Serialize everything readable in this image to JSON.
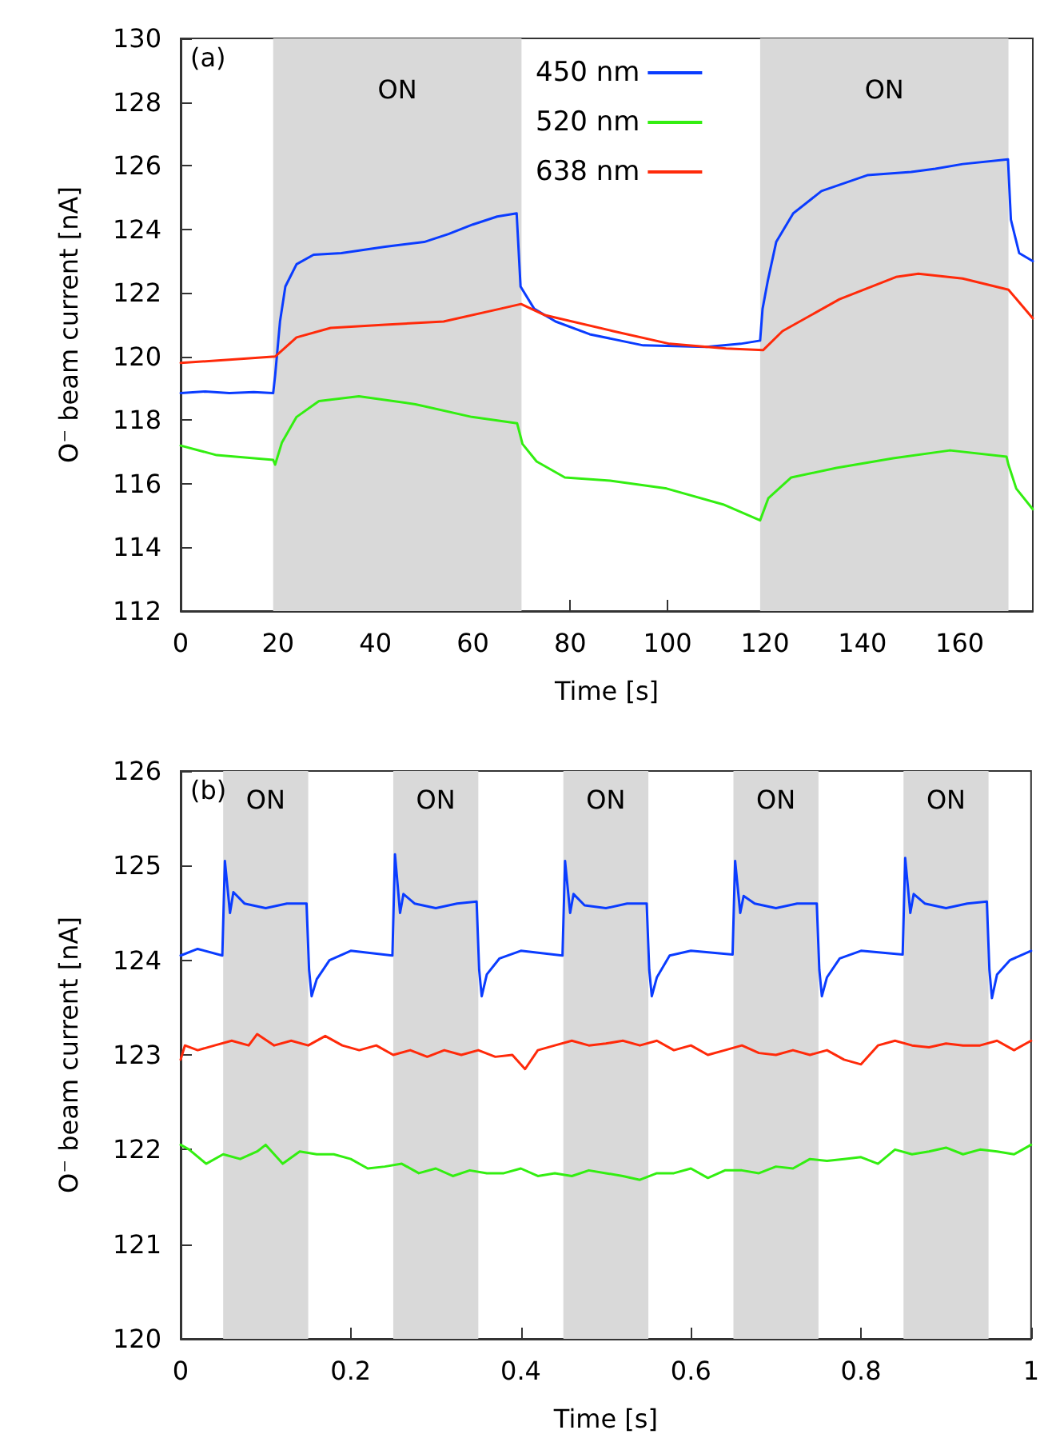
{
  "chart_data": [
    {
      "type": "line",
      "xlabel": "Time [s]",
      "ylabel": "O⁻ beam current [nA]",
      "xlim": [
        0,
        175
      ],
      "xticks": [
        0,
        20,
        40,
        60,
        80,
        100,
        120,
        140,
        160
      ],
      "ylim": [
        112,
        130
      ],
      "yticks": [
        112,
        114,
        116,
        118,
        120,
        122,
        124,
        126,
        128,
        130
      ],
      "grid": false,
      "legend": "top",
      "marker": "none",
      "line_style": "solid",
      "annotations": [
        "(a)"
      ],
      "bands": [
        {
          "axis": "x",
          "from": 19,
          "to": 70,
          "label": "ON",
          "color": "#d9d9d9"
        },
        {
          "axis": "x",
          "from": 119,
          "to": 170,
          "label": "ON",
          "color": "#d9d9d9"
        }
      ],
      "series": [
        {
          "name": "450 nm",
          "color": "#0a3cff",
          "x": [
            0,
            5,
            10,
            15,
            19,
            19.4,
            20.4,
            21.5,
            23.8,
            27.3,
            33,
            42,
            50,
            55,
            60,
            65,
            69,
            69.8,
            72.6,
            77,
            84,
            95,
            108,
            115,
            119,
            119.5,
            120.6,
            122.3,
            125.8,
            131.6,
            141,
            150,
            155,
            160.6,
            169.9,
            170.5,
            172.2,
            175
          ],
          "values": [
            118.85,
            118.9,
            118.85,
            118.88,
            118.85,
            119.4,
            121.1,
            122.2,
            122.9,
            123.2,
            123.25,
            123.45,
            123.6,
            123.85,
            124.15,
            124.4,
            124.5,
            122.2,
            121.5,
            121.1,
            120.7,
            120.35,
            120.3,
            120.4,
            120.5,
            121.5,
            122.4,
            123.6,
            124.5,
            125.2,
            125.7,
            125.8,
            125.9,
            126.05,
            126.2,
            124.3,
            123.25,
            123.0
          ]
        },
        {
          "name": "520 nm",
          "color": "#33ee11",
          "x": [
            0,
            7.4,
            19,
            19.4,
            20.8,
            23.8,
            28.4,
            36.6,
            48.2,
            59.8,
            69.1,
            70.2,
            73.1,
            78.9,
            88.2,
            99.8,
            111.4,
            119,
            120.7,
            125.4,
            134.7,
            146.3,
            158,
            169.6,
            170,
            171.6,
            175
          ],
          "values": [
            117.2,
            116.9,
            116.75,
            116.6,
            117.3,
            118.1,
            118.6,
            118.75,
            118.5,
            118.1,
            117.9,
            117.25,
            116.7,
            116.2,
            116.1,
            115.85,
            115.35,
            114.85,
            115.55,
            116.2,
            116.5,
            116.8,
            117.05,
            116.85,
            116.6,
            115.85,
            115.2
          ]
        },
        {
          "name": "638 nm",
          "color": "#ff2a0a",
          "x": [
            0,
            10,
            19.4,
            23.8,
            30.8,
            42,
            54,
            65.6,
            69.9,
            74.8,
            88.8,
            100.4,
            112,
            119.6,
            123.6,
            135.3,
            146.9,
            151.5,
            160.6,
            170,
            175
          ],
          "values": [
            119.8,
            119.9,
            120.0,
            120.6,
            120.9,
            121.0,
            121.1,
            121.5,
            121.65,
            121.3,
            120.8,
            120.4,
            120.25,
            120.2,
            120.8,
            121.8,
            122.5,
            122.6,
            122.45,
            122.1,
            121.2
          ]
        }
      ]
    },
    {
      "type": "line",
      "xlabel": "Time [s]",
      "ylabel": "O⁻ beam current [nA]",
      "xlim": [
        0,
        1
      ],
      "xticks": [
        0,
        0.2,
        0.4,
        0.6,
        0.8,
        1
      ],
      "ylim": [
        120,
        126
      ],
      "yticks": [
        120,
        121,
        122,
        123,
        124,
        125,
        126
      ],
      "grid": false,
      "legend": false,
      "marker": "none",
      "line_style": "solid",
      "annotations": [
        "(b)"
      ],
      "bands": [
        {
          "axis": "x",
          "from": 0.05,
          "to": 0.15,
          "label": "ON",
          "color": "#d9d9d9"
        },
        {
          "axis": "x",
          "from": 0.25,
          "to": 0.35,
          "label": "ON",
          "color": "#d9d9d9"
        },
        {
          "axis": "x",
          "from": 0.45,
          "to": 0.55,
          "label": "ON",
          "color": "#d9d9d9"
        },
        {
          "axis": "x",
          "from": 0.65,
          "to": 0.75,
          "label": "ON",
          "color": "#d9d9d9"
        },
        {
          "axis": "x",
          "from": 0.85,
          "to": 0.95,
          "label": "ON",
          "color": "#d9d9d9"
        }
      ],
      "series": [
        {
          "color": "#0a3cff",
          "x": [
            0,
            0.02,
            0.049,
            0.052,
            0.058,
            0.062,
            0.075,
            0.1,
            0.125,
            0.148,
            0.151,
            0.154,
            0.16,
            0.175,
            0.2,
            0.249,
            0.252,
            0.258,
            0.262,
            0.275,
            0.3,
            0.325,
            0.348,
            0.351,
            0.354,
            0.36,
            0.375,
            0.4,
            0.449,
            0.452,
            0.458,
            0.462,
            0.475,
            0.5,
            0.525,
            0.548,
            0.551,
            0.554,
            0.56,
            0.575,
            0.6,
            0.649,
            0.652,
            0.658,
            0.662,
            0.675,
            0.7,
            0.725,
            0.748,
            0.751,
            0.754,
            0.76,
            0.775,
            0.8,
            0.849,
            0.852,
            0.858,
            0.862,
            0.875,
            0.9,
            0.925,
            0.948,
            0.951,
            0.954,
            0.96,
            0.975,
            1
          ],
          "values": [
            124.05,
            124.12,
            124.05,
            125.05,
            124.5,
            124.72,
            124.6,
            124.55,
            124.6,
            124.6,
            123.9,
            123.62,
            123.8,
            124.0,
            124.1,
            124.05,
            125.12,
            124.5,
            124.7,
            124.6,
            124.55,
            124.6,
            124.62,
            123.9,
            123.62,
            123.85,
            124.02,
            124.1,
            124.05,
            125.05,
            124.5,
            124.7,
            124.58,
            124.55,
            124.6,
            124.6,
            123.9,
            123.62,
            123.82,
            124.05,
            124.1,
            124.06,
            125.05,
            124.5,
            124.68,
            124.6,
            124.55,
            124.6,
            124.6,
            123.9,
            123.62,
            123.82,
            124.02,
            124.1,
            124.06,
            125.08,
            124.5,
            124.7,
            124.6,
            124.55,
            124.6,
            124.62,
            123.9,
            123.6,
            123.85,
            124.0,
            124.1
          ]
        },
        {
          "color": "#ff2a0a",
          "x": [
            0,
            0.005,
            0.02,
            0.04,
            0.06,
            0.08,
            0.09,
            0.11,
            0.13,
            0.15,
            0.17,
            0.19,
            0.21,
            0.23,
            0.25,
            0.27,
            0.29,
            0.31,
            0.33,
            0.35,
            0.37,
            0.39,
            0.405,
            0.42,
            0.44,
            0.46,
            0.48,
            0.5,
            0.52,
            0.54,
            0.56,
            0.58,
            0.6,
            0.62,
            0.64,
            0.66,
            0.68,
            0.7,
            0.72,
            0.74,
            0.76,
            0.78,
            0.8,
            0.82,
            0.84,
            0.86,
            0.88,
            0.9,
            0.92,
            0.94,
            0.96,
            0.98,
            1
          ],
          "values": [
            122.95,
            123.1,
            123.05,
            123.1,
            123.15,
            123.1,
            123.22,
            123.1,
            123.15,
            123.1,
            123.2,
            123.1,
            123.05,
            123.1,
            123.0,
            123.05,
            122.98,
            123.05,
            123.0,
            123.05,
            122.98,
            123.0,
            122.85,
            123.05,
            123.1,
            123.15,
            123.1,
            123.12,
            123.15,
            123.1,
            123.15,
            123.05,
            123.1,
            123.0,
            123.05,
            123.1,
            123.02,
            123.0,
            123.05,
            123.0,
            123.05,
            122.95,
            122.9,
            123.1,
            123.15,
            123.1,
            123.08,
            123.12,
            123.1,
            123.1,
            123.15,
            123.05,
            123.15
          ]
        },
        {
          "color": "#33ee11",
          "x": [
            0,
            0.01,
            0.03,
            0.05,
            0.07,
            0.09,
            0.1,
            0.12,
            0.14,
            0.16,
            0.18,
            0.2,
            0.22,
            0.24,
            0.26,
            0.28,
            0.3,
            0.32,
            0.34,
            0.36,
            0.38,
            0.4,
            0.42,
            0.44,
            0.46,
            0.48,
            0.5,
            0.52,
            0.54,
            0.56,
            0.58,
            0.6,
            0.62,
            0.64,
            0.66,
            0.68,
            0.7,
            0.72,
            0.74,
            0.76,
            0.78,
            0.8,
            0.82,
            0.84,
            0.86,
            0.88,
            0.9,
            0.92,
            0.94,
            0.96,
            0.98,
            1
          ],
          "values": [
            122.05,
            122.0,
            121.85,
            121.95,
            121.9,
            121.98,
            122.05,
            121.85,
            121.98,
            121.95,
            121.95,
            121.9,
            121.8,
            121.82,
            121.85,
            121.75,
            121.8,
            121.72,
            121.78,
            121.75,
            121.75,
            121.8,
            121.72,
            121.75,
            121.72,
            121.78,
            121.75,
            121.72,
            121.68,
            121.75,
            121.75,
            121.8,
            121.7,
            121.78,
            121.78,
            121.75,
            121.82,
            121.8,
            121.9,
            121.88,
            121.9,
            121.92,
            121.85,
            122.0,
            121.95,
            121.98,
            122.02,
            121.95,
            122.0,
            121.98,
            121.95,
            122.05
          ]
        }
      ]
    }
  ]
}
